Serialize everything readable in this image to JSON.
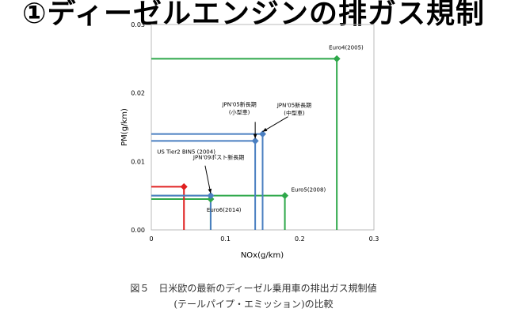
{
  "slide": {
    "title": "①ディーゼルエンジンの排ガス規制",
    "caption_line1": "図５　日米欧の最新のディーゼル乗用車の排出ガス規制値",
    "caption_line2": "(テールパイプ・エミッション)の比較"
  },
  "chart_data": {
    "type": "scatter",
    "title": "",
    "xlabel": "NOx(g/km)",
    "ylabel": "PM(g/km)",
    "xlim": [
      0,
      0.3
    ],
    "ylim": [
      0,
      0.03
    ],
    "x_ticks": [
      "0",
      "0.1",
      "0.2",
      "0.3"
    ],
    "y_ticks": [
      "0.00",
      "0.01",
      "0.02",
      "0.03"
    ],
    "x_tick_values": [
      0,
      0.1,
      0.2,
      0.3
    ],
    "y_tick_values": [
      0,
      0.01,
      0.02,
      0.03
    ],
    "grid": false,
    "series": [
      {
        "name": "Euro4(2005)",
        "x": 0.25,
        "y": 0.025,
        "color": "#2ea84a"
      },
      {
        "name": "Euro5(2008)",
        "x": 0.18,
        "y": 0.005,
        "color": "#2ea84a"
      },
      {
        "name": "Euro6(2014)",
        "x": 0.08,
        "y": 0.0045,
        "color": "#2ea84a"
      },
      {
        "name": "US Tier2 BIN5 (2004)",
        "x": 0.044,
        "y": 0.0063,
        "color": "#e02020"
      },
      {
        "name": "JPN'09ポスト新長期",
        "x": 0.08,
        "y": 0.005,
        "color": "#4a7fc1"
      },
      {
        "name": "JPN'05新長期\n(小型車)",
        "x": 0.14,
        "y": 0.013,
        "color": "#4a7fc1"
      },
      {
        "name": "JPN'05新長期\n(中型車)",
        "x": 0.15,
        "y": 0.014,
        "color": "#4a7fc1"
      }
    ]
  }
}
